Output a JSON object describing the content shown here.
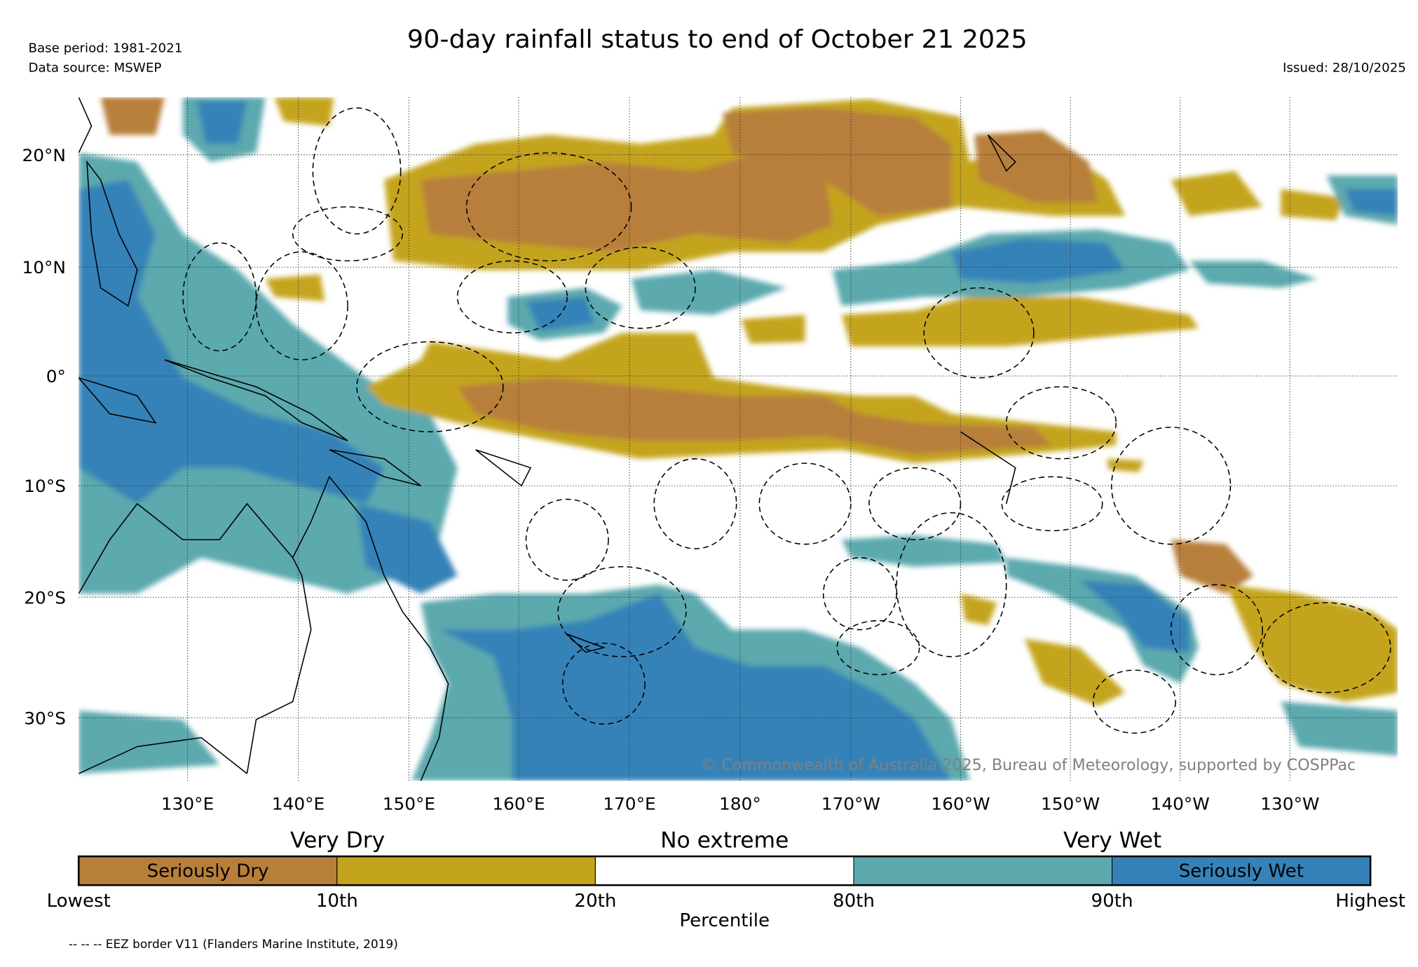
{
  "header": {
    "title": "90-day rainfall status to end of October 21 2025",
    "base_period": "Base period: 1981-2021",
    "data_source": "Data source: MSWEP",
    "issued": "Issued: 28/10/2025"
  },
  "map": {
    "copyright": "© Commonwealth of Australia 2025, Bureau of Meteorology, supported by COSPPac",
    "lon_labels": [
      "130°E",
      "140°E",
      "150°E",
      "160°E",
      "170°E",
      "180°",
      "170°W",
      "160°W",
      "150°W",
      "140°W",
      "130°W"
    ],
    "lat_labels": [
      "20°N",
      "10°N",
      "0°",
      "10°S",
      "20°S",
      "30°S"
    ]
  },
  "legend": {
    "group_labels": [
      "Very Dry",
      "No extreme",
      "Very Wet"
    ],
    "segments": [
      {
        "label": "Seriously Dry",
        "color": "#b77f3a"
      },
      {
        "label": "",
        "color": "#c4a41c"
      },
      {
        "label": "",
        "color": "#ffffff"
      },
      {
        "label": "",
        "color": "#5ca9ae"
      },
      {
        "label": "Seriously Wet",
        "color": "#3582b8"
      }
    ],
    "ticks": [
      "Lowest",
      "10th",
      "20th",
      "80th",
      "90th",
      "Highest"
    ],
    "axis_label": "Percentile",
    "eez_note": "-- -- -- EEZ border V11 (Flanders Marine Institute, 2019)"
  }
}
